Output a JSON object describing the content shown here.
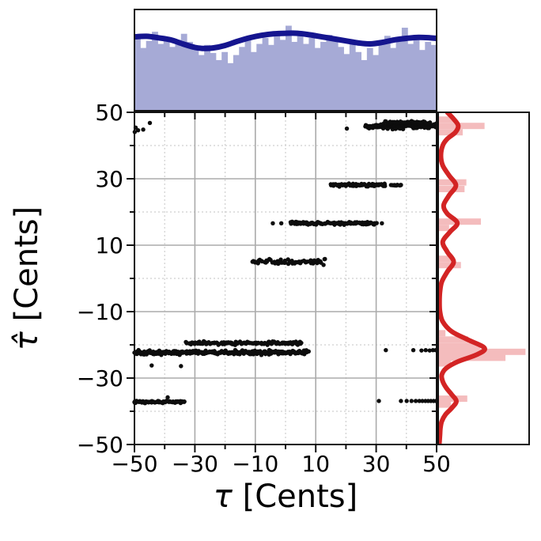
{
  "chart_data": {
    "type": "scatter",
    "description": "Joint plot: scatter of estimated vs true detuning with marginal histograms and KDE curves",
    "xlabel_tau": "τ",
    "xlabel_unit": " [Cents]",
    "ylabel_tau": "τ̂",
    "ylabel_unit": " [Cents]",
    "xlim": [
      -50,
      50
    ],
    "ylim": [
      -50,
      50
    ],
    "major_ticks": [
      -50,
      -30,
      -10,
      10,
      30,
      50
    ],
    "minor_ticks": [
      -40,
      -20,
      0,
      20,
      40
    ],
    "x_tick_labels": [
      "−50",
      "−30",
      "−10",
      "10",
      "30",
      "50"
    ],
    "y_tick_labels": [
      "50",
      "30",
      "10",
      "−10",
      "−30",
      "−50"
    ],
    "grid": true,
    "colors": {
      "background": "#ffffff",
      "spine": "#111111",
      "grid_major": "#ababab",
      "grid_minor": "#cfcfcf",
      "scatter": "#0d0d0d",
      "top_hist_fill": "#a6aad6",
      "top_kde": "#15158f",
      "right_hist_fill": "#f4bcbd",
      "right_kde": "#d32424",
      "tick_label": "#000000"
    },
    "scatter_bands": [
      {
        "y": 45.8,
        "jitter": 0.75,
        "x0": 26.5,
        "x1": 50,
        "n": 130
      },
      {
        "y": 47.0,
        "jitter": 0.35,
        "x0": 33,
        "x1": 48,
        "n": 40
      },
      {
        "y": 28.1,
        "jitter": 0.4,
        "x0": 15,
        "x1": 33,
        "n": 80
      },
      {
        "y": 28.1,
        "jitter": 0.3,
        "x0": 35,
        "x1": 38.5,
        "n": 12
      },
      {
        "y": 16.6,
        "jitter": 0.4,
        "x0": 1.5,
        "x1": 30,
        "n": 100
      },
      {
        "y": 5.0,
        "jitter": 0.8,
        "x0": -11,
        "x1": 13,
        "n": 70
      },
      {
        "y": -22.3,
        "jitter": 0.6,
        "x0": -50,
        "x1": 7.5,
        "n": 280
      },
      {
        "y": -19.5,
        "jitter": 0.5,
        "x0": -33,
        "x1": 5.5,
        "n": 120
      },
      {
        "y": -37.2,
        "jitter": 0.35,
        "x0": -50,
        "x1": -33.5,
        "n": 70
      }
    ],
    "scatter_points": [
      [
        -49.6,
        45.4
      ],
      [
        -48.8,
        44.6
      ],
      [
        -47.1,
        44.8
      ],
      [
        -44.9,
        46.8
      ],
      [
        -49.9,
        44.1
      ],
      [
        20.3,
        45.1
      ],
      [
        -4.2,
        16.6
      ],
      [
        -1.4,
        16.6
      ],
      [
        31.9,
        16.6
      ],
      [
        -44.3,
        -26.2
      ],
      [
        -34.6,
        -26.4
      ],
      [
        33.2,
        -21.6
      ],
      [
        42.3,
        -21.6
      ],
      [
        45.0,
        -21.7
      ],
      [
        46.4,
        -21.6
      ],
      [
        47.7,
        -21.7
      ],
      [
        48.8,
        -21.6
      ],
      [
        49.7,
        -21.6
      ],
      [
        -39.0,
        -35.8
      ],
      [
        30.9,
        -36.9
      ],
      [
        38.2,
        -36.9
      ],
      [
        40.1,
        -36.9
      ],
      [
        41.7,
        -36.9
      ],
      [
        43.1,
        -36.9
      ],
      [
        44.3,
        -36.9
      ],
      [
        45.3,
        -36.9
      ],
      [
        46.3,
        -36.9
      ],
      [
        47.2,
        -36.9
      ],
      [
        48.1,
        -36.9
      ],
      [
        49.0,
        -36.9
      ],
      [
        49.8,
        -36.9
      ]
    ],
    "top_hist": {
      "bar_heights": [
        0.72,
        0.62,
        0.69,
        0.78,
        0.66,
        0.71,
        0.63,
        0.7,
        0.76,
        0.68,
        0.6,
        0.55,
        0.65,
        0.57,
        0.5,
        0.58,
        0.47,
        0.55,
        0.63,
        0.7,
        0.58,
        0.66,
        0.72,
        0.65,
        0.74,
        0.7,
        0.84,
        0.68,
        0.74,
        0.66,
        0.72,
        0.62,
        0.68,
        0.75,
        0.7,
        0.63,
        0.56,
        0.66,
        0.58,
        0.5,
        0.62,
        0.55,
        0.68,
        0.74,
        0.62,
        0.7,
        0.82,
        0.66,
        0.72,
        0.6,
        0.68,
        0.65
      ],
      "kde": [
        [
          -50,
          0.73
        ],
        [
          -46,
          0.735
        ],
        [
          -42,
          0.72
        ],
        [
          -38,
          0.7
        ],
        [
          -34,
          0.66
        ],
        [
          -30,
          0.625
        ],
        [
          -27,
          0.615
        ],
        [
          -24,
          0.62
        ],
        [
          -20,
          0.645
        ],
        [
          -16,
          0.685
        ],
        [
          -12,
          0.72
        ],
        [
          -8,
          0.745
        ],
        [
          -4,
          0.76
        ],
        [
          0,
          0.765
        ],
        [
          4,
          0.765
        ],
        [
          8,
          0.75
        ],
        [
          12,
          0.73
        ],
        [
          16,
          0.71
        ],
        [
          20,
          0.69
        ],
        [
          24,
          0.67
        ],
        [
          28,
          0.66
        ],
        [
          32,
          0.675
        ],
        [
          36,
          0.7
        ],
        [
          40,
          0.715
        ],
        [
          44,
          0.725
        ],
        [
          48,
          0.72
        ],
        [
          50,
          0.715
        ]
      ]
    },
    "right_hist": {
      "bar_thickness_cents": 1.9,
      "bars": [
        [
          47.8,
          0.18
        ],
        [
          45.9,
          0.51
        ],
        [
          44.0,
          0.27
        ],
        [
          28.9,
          0.31
        ],
        [
          26.9,
          0.29
        ],
        [
          17.1,
          0.47
        ],
        [
          15.2,
          0.12
        ],
        [
          5.9,
          0.14
        ],
        [
          4.0,
          0.25
        ],
        [
          -16.5,
          0.08
        ],
        [
          -18.4,
          0.33
        ],
        [
          -20.3,
          0.46
        ],
        [
          -22.1,
          0.96
        ],
        [
          -23.9,
          0.74
        ],
        [
          -25.6,
          0.14
        ],
        [
          -36.2,
          0.32
        ],
        [
          -38.0,
          0.14
        ]
      ],
      "kde": [
        [
          50,
          0.1
        ],
        [
          48,
          0.17
        ],
        [
          46,
          0.22
        ],
        [
          44,
          0.19
        ],
        [
          42,
          0.1
        ],
        [
          40,
          0.05
        ],
        [
          37,
          0.03
        ],
        [
          34,
          0.05
        ],
        [
          31,
          0.12
        ],
        [
          28,
          0.195
        ],
        [
          25,
          0.12
        ],
        [
          22,
          0.06
        ],
        [
          19.5,
          0.1
        ],
        [
          16.7,
          0.21
        ],
        [
          14,
          0.13
        ],
        [
          11,
          0.05
        ],
        [
          8,
          0.1
        ],
        [
          5,
          0.17
        ],
        [
          2,
          0.1
        ],
        [
          -1,
          0.04
        ],
        [
          -4,
          0.02
        ],
        [
          -7,
          0.015
        ],
        [
          -10,
          0.02
        ],
        [
          -13,
          0.05
        ],
        [
          -16,
          0.15
        ],
        [
          -18.5,
          0.33
        ],
        [
          -21,
          0.51
        ],
        [
          -23,
          0.42
        ],
        [
          -25,
          0.22
        ],
        [
          -27,
          0.09
        ],
        [
          -29,
          0.04
        ],
        [
          -31,
          0.05
        ],
        [
          -33,
          0.09
        ],
        [
          -35,
          0.15
        ],
        [
          -37,
          0.2
        ],
        [
          -39,
          0.15
        ],
        [
          -41,
          0.08
        ],
        [
          -43,
          0.04
        ],
        [
          -45,
          0.025
        ],
        [
          -47,
          0.02
        ],
        [
          -49,
          0.015
        ],
        [
          -50,
          0.012
        ]
      ]
    }
  }
}
